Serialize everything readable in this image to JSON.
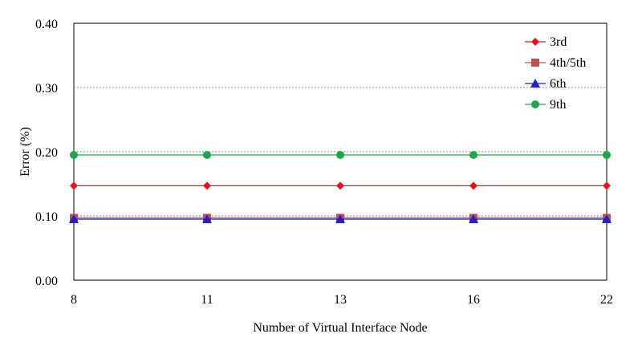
{
  "chart_data": {
    "type": "line",
    "title": "",
    "xlabel": "Number of Virtual Interface Node",
    "ylabel": "Error (%)",
    "categories": [
      "8",
      "11",
      "13",
      "16",
      "22"
    ],
    "ylim": [
      0,
      0.4
    ],
    "yticks": [
      "0.00",
      "0.10",
      "0.20",
      "0.30",
      "0.40"
    ],
    "grid": "horizontal-dashed",
    "legend_position": "top-right",
    "series": [
      {
        "name": "3rd",
        "values": [
          0.147,
          0.147,
          0.147,
          0.147,
          0.147
        ],
        "color": "#e8141a",
        "marker": "diamond"
      },
      {
        "name": "4th/5th",
        "values": [
          0.097,
          0.097,
          0.097,
          0.097,
          0.097
        ],
        "color": "#c0504d",
        "marker": "square"
      },
      {
        "name": "6th",
        "values": [
          0.095,
          0.095,
          0.095,
          0.095,
          0.095
        ],
        "color": "#1f1fd6",
        "marker": "triangle"
      },
      {
        "name": "9th",
        "values": [
          0.195,
          0.195,
          0.195,
          0.195,
          0.195
        ],
        "color": "#1aa84a",
        "marker": "circle"
      }
    ]
  }
}
